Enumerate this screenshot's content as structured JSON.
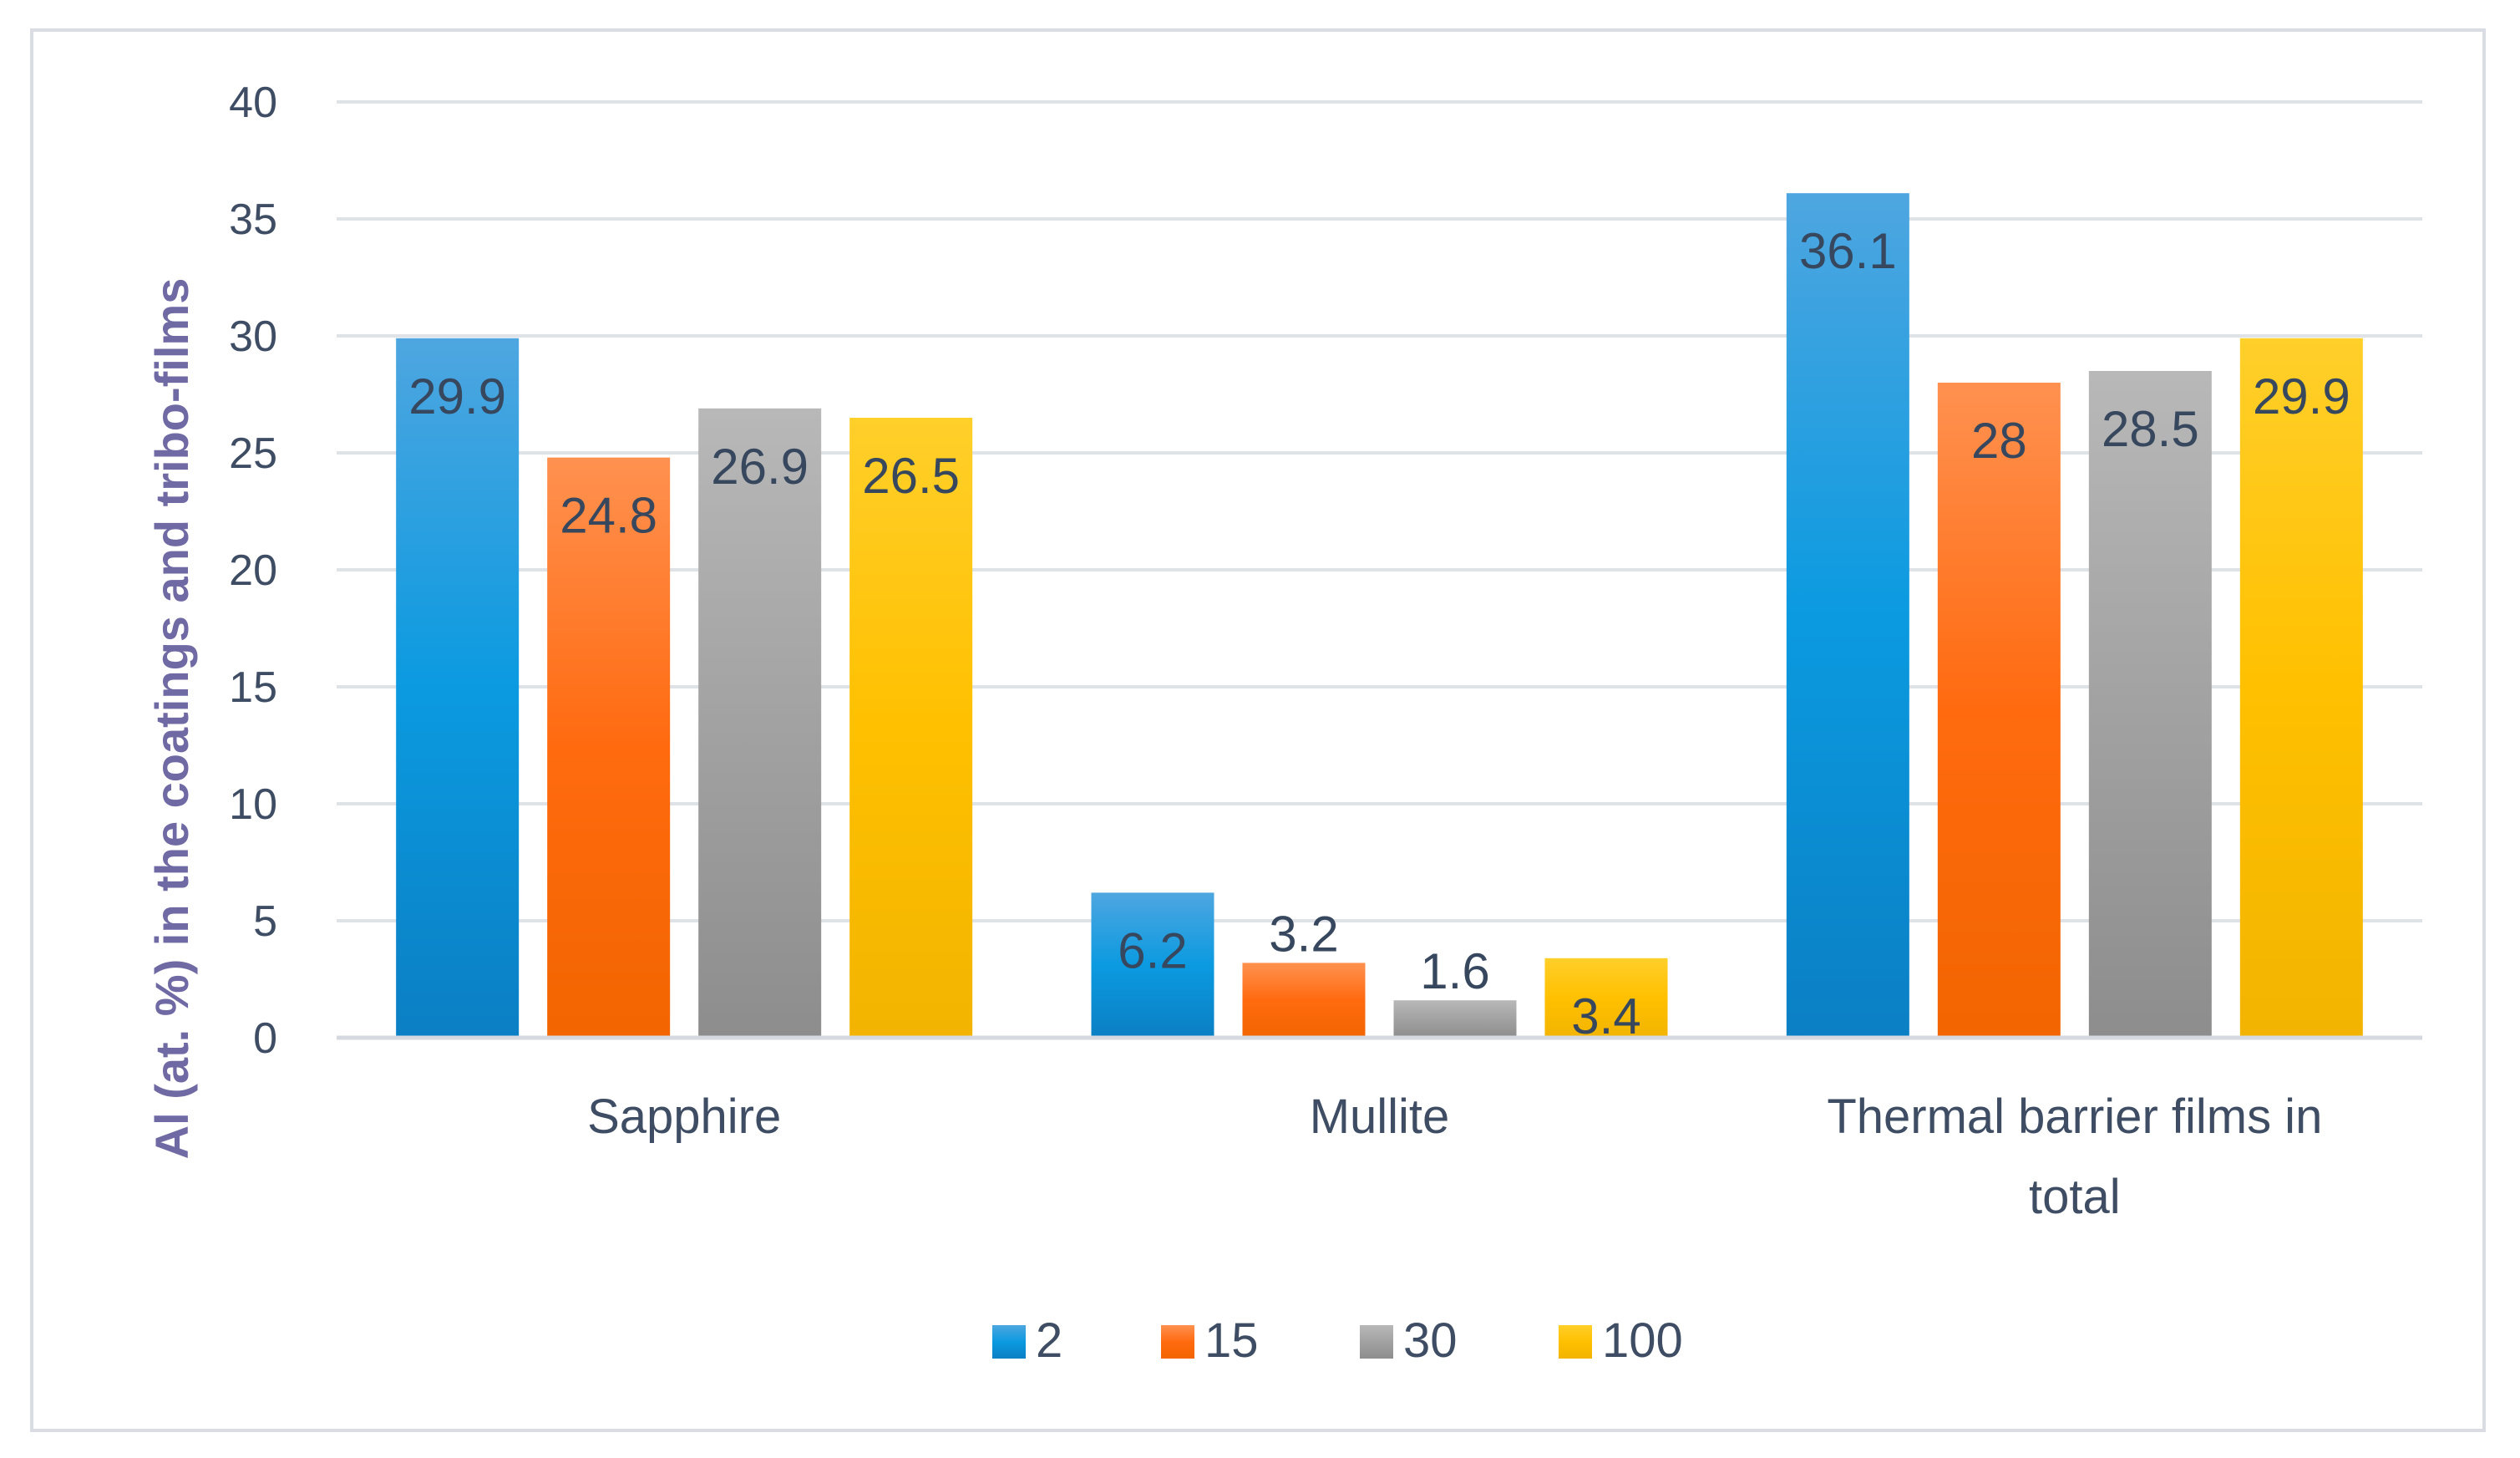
{
  "chart_data": {
    "type": "bar",
    "title": "",
    "xlabel": "",
    "ylabel": "Al (at. %) in the coatings and tribo-films",
    "ylim": [
      0,
      40
    ],
    "yticks": [
      0,
      5,
      10,
      15,
      20,
      25,
      30,
      35,
      40
    ],
    "grid": true,
    "legend_position": "bottom",
    "categories": [
      [
        "Sapphire"
      ],
      [
        "Mullite"
      ],
      [
        "Thermal barrier films in",
        "total"
      ]
    ],
    "series": [
      {
        "name": "2",
        "values": [
          29.9,
          6.2,
          36.1
        ],
        "labels": [
          "29.9",
          "6.2",
          "36.1"
        ],
        "color_top": "#4ea6e0",
        "color_mid": "#0b9ae0",
        "color_bottom": "#0b7fc4"
      },
      {
        "name": "15",
        "values": [
          24.8,
          3.2,
          28
        ],
        "labels": [
          "24.8",
          "3.2",
          "28"
        ],
        "color_top": "#ff9150",
        "color_mid": "#ff6a0f",
        "color_bottom": "#f26500"
      },
      {
        "name": "30",
        "values": [
          26.9,
          1.6,
          28.5
        ],
        "labels": [
          "26.9",
          "1.6",
          "28.5"
        ],
        "color_top": "#b8b8b8",
        "color_mid": "#a2a2a2",
        "color_bottom": "#8d8d8d"
      },
      {
        "name": "100",
        "values": [
          26.5,
          3.4,
          29.9
        ],
        "labels": [
          "26.5",
          "3.4",
          "29.9"
        ],
        "color_top": "#ffcf2a",
        "color_mid": "#ffc000",
        "color_bottom": "#f2b400"
      }
    ]
  }
}
